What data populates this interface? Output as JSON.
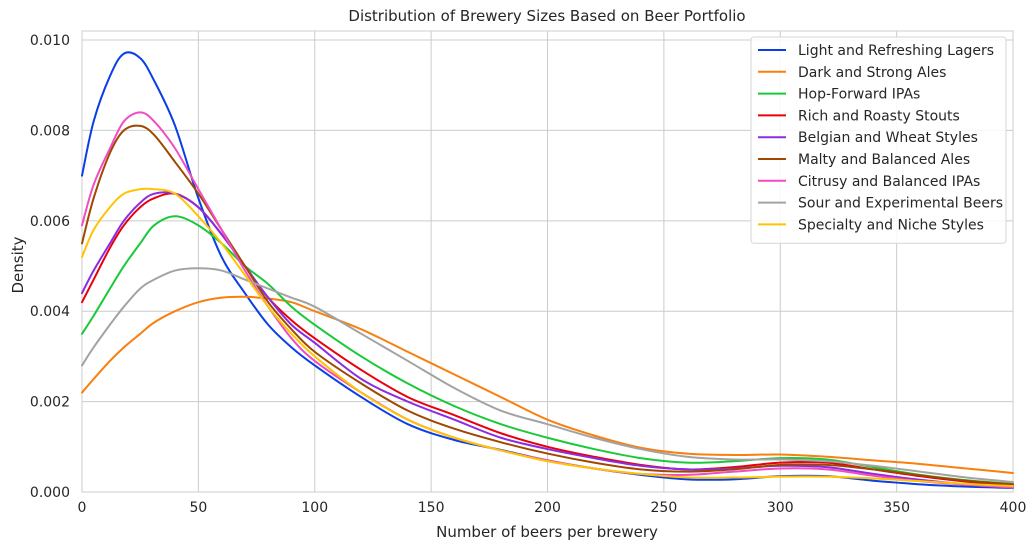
{
  "chart_data": {
    "type": "line",
    "title": "Distribution of Brewery Sizes Based on Beer Portfolio",
    "xlabel": "Number of beers per brewery",
    "ylabel": "Density",
    "xlim": [
      0,
      400
    ],
    "ylim": [
      0,
      0.0102
    ],
    "xticks": [
      0,
      50,
      100,
      150,
      200,
      250,
      300,
      350,
      400
    ],
    "xtick_labels": [
      "0",
      "50",
      "100",
      "150",
      "200",
      "250",
      "300",
      "350",
      "400"
    ],
    "yticks": [
      0,
      0.002,
      0.004,
      0.006,
      0.008,
      0.01
    ],
    "ytick_labels": [
      "0.000",
      "0.002",
      "0.004",
      "0.006",
      "0.008",
      "0.010"
    ],
    "grid": true,
    "legend_position": "top-right",
    "x": [
      0,
      5,
      12,
      18,
      25,
      31,
      40,
      50,
      60,
      70,
      80,
      90,
      100,
      120,
      140,
      160,
      180,
      200,
      220,
      240,
      260,
      280,
      300,
      320,
      340,
      360,
      380,
      400
    ],
    "series": [
      {
        "name": "Light and Refreshing Lagers",
        "color": "#0a3ee8",
        "values": [
          0.007,
          0.0082,
          0.0092,
          0.0097,
          0.0096,
          0.0091,
          0.0081,
          0.0065,
          0.0052,
          0.0044,
          0.0037,
          0.0032,
          0.0028,
          0.0021,
          0.0015,
          0.00115,
          0.00093,
          0.0007,
          0.00052,
          0.00038,
          0.00028,
          0.00028,
          0.00035,
          0.00035,
          0.00025,
          0.00017,
          0.00012,
          9e-05
        ]
      },
      {
        "name": "Dark and Strong Ales",
        "color": "#f97f0e",
        "values": [
          0.0022,
          0.0025,
          0.0029,
          0.0032,
          0.0035,
          0.00375,
          0.004,
          0.0042,
          0.0043,
          0.00432,
          0.00428,
          0.0042,
          0.004,
          0.0036,
          0.0031,
          0.0026,
          0.0021,
          0.0016,
          0.00125,
          0.00098,
          0.00085,
          0.00082,
          0.00083,
          0.00078,
          0.0007,
          0.00062,
          0.00052,
          0.00042
        ]
      },
      {
        "name": "Hop-Forward IPAs",
        "color": "#1ac938",
        "values": [
          0.0035,
          0.0039,
          0.0045,
          0.005,
          0.0055,
          0.0059,
          0.0061,
          0.0059,
          0.0055,
          0.005,
          0.0046,
          0.0041,
          0.0037,
          0.003,
          0.0024,
          0.0019,
          0.0015,
          0.0012,
          0.00095,
          0.00075,
          0.00065,
          0.00068,
          0.00075,
          0.00072,
          0.00055,
          0.00038,
          0.00026,
          0.00018
        ]
      },
      {
        "name": "Rich and Roasty Stouts",
        "color": "#e8000b",
        "values": [
          0.0042,
          0.0047,
          0.0054,
          0.0059,
          0.0063,
          0.0065,
          0.0066,
          0.0063,
          0.0057,
          0.005,
          0.0043,
          0.0038,
          0.0034,
          0.0027,
          0.0021,
          0.0017,
          0.0013,
          0.001,
          0.00078,
          0.0006,
          0.0005,
          0.00055,
          0.00065,
          0.00065,
          0.0005,
          0.00035,
          0.00023,
          0.00015
        ]
      },
      {
        "name": "Belgian and Wheat Styles",
        "color": "#8b2be2",
        "values": [
          0.0044,
          0.0049,
          0.0055,
          0.006,
          0.0064,
          0.0066,
          0.0066,
          0.0063,
          0.0057,
          0.005,
          0.0043,
          0.0037,
          0.0033,
          0.0025,
          0.002,
          0.0016,
          0.0012,
          0.00095,
          0.00075,
          0.00058,
          0.0005,
          0.00052,
          0.00058,
          0.00055,
          0.0004,
          0.00027,
          0.00017,
          0.00011
        ]
      },
      {
        "name": "Malty and Balanced Ales",
        "color": "#9f4800",
        "values": [
          0.0055,
          0.0065,
          0.0075,
          0.008,
          0.0081,
          0.0079,
          0.0073,
          0.0066,
          0.0058,
          0.005,
          0.0042,
          0.0036,
          0.0031,
          0.0024,
          0.0018,
          0.0014,
          0.0011,
          0.00085,
          0.00065,
          0.0005,
          0.00045,
          0.0005,
          0.0006,
          0.0006,
          0.0005,
          0.00037,
          0.00025,
          0.00017
        ]
      },
      {
        "name": "Citrusy and Balanced IPAs",
        "color": "#f14cc1",
        "values": [
          0.0059,
          0.0068,
          0.0076,
          0.0082,
          0.0084,
          0.0082,
          0.0076,
          0.0067,
          0.0058,
          0.0049,
          0.0041,
          0.0034,
          0.0029,
          0.0022,
          0.0016,
          0.0012,
          0.00092,
          0.0007,
          0.00052,
          0.0004,
          0.00038,
          0.00045,
          0.00052,
          0.0005,
          0.00036,
          0.00024,
          0.00016,
          0.0001
        ]
      },
      {
        "name": "Sour and Experimental Beers",
        "color": "#a3a3a3",
        "values": [
          0.0028,
          0.0032,
          0.0037,
          0.0041,
          0.0045,
          0.0047,
          0.0049,
          0.00495,
          0.0049,
          0.0047,
          0.0045,
          0.0043,
          0.0041,
          0.0035,
          0.0029,
          0.0023,
          0.0018,
          0.0015,
          0.0012,
          0.00095,
          0.00078,
          0.00072,
          0.00072,
          0.00068,
          0.00058,
          0.00045,
          0.00032,
          0.00022
        ]
      },
      {
        "name": "Specialty and Niche Styles",
        "color": "#ffc400",
        "values": [
          0.0052,
          0.0058,
          0.0063,
          0.0066,
          0.0067,
          0.0067,
          0.0066,
          0.0061,
          0.0055,
          0.0048,
          0.0041,
          0.0035,
          0.003,
          0.0022,
          0.0016,
          0.0012,
          0.00092,
          0.00068,
          0.00052,
          0.0004,
          0.00032,
          0.00032,
          0.00034,
          0.00034,
          0.0003,
          0.00024,
          0.00018,
          0.00013
        ]
      }
    ]
  }
}
